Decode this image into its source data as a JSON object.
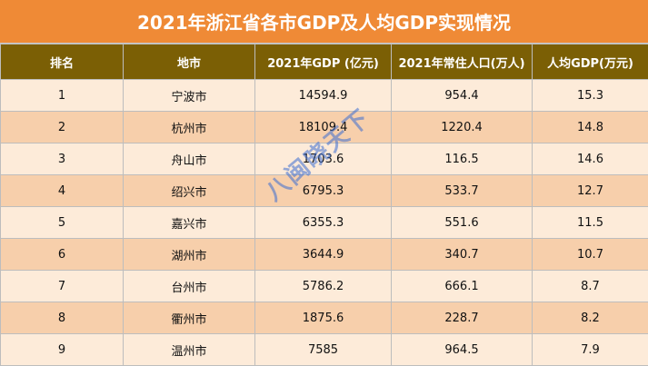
{
  "title": "2021年浙江省各市GDP及人均GDP实现情况",
  "columns": [
    "排名",
    "地市",
    "2021年GDP (亿元)",
    "2021年常住人口(万人)",
    "人均GDP(万元)"
  ],
  "rows": [
    [
      "1",
      "宁波市",
      "14594.9",
      "954.4",
      "15.3"
    ],
    [
      "2",
      "杭州市",
      "18109.4",
      "1220.4",
      "14.8"
    ],
    [
      "3",
      "舟山市",
      "1703.6",
      "116.5",
      "14.6"
    ],
    [
      "4",
      "绍兴市",
      "6795.3",
      "533.7",
      "12.7"
    ],
    [
      "5",
      "嘉兴市",
      "6355.3",
      "551.6",
      "11.5"
    ],
    [
      "6",
      "湖州市",
      "3644.9",
      "340.7",
      "10.7"
    ],
    [
      "7",
      "台州市",
      "5786.2",
      "666.1",
      "8.7"
    ],
    [
      "8",
      "衢州市",
      "1875.6",
      "228.7",
      "8.2"
    ],
    [
      "9",
      "温州市",
      "7585",
      "964.5",
      "7.9"
    ]
  ],
  "watermark": "八闽晓天下",
  "colors": {
    "title_bg": "#ef8a36",
    "header_bg": "#7b5f05",
    "row_light": "#fdebd9",
    "row_dark": "#f7cfab"
  }
}
